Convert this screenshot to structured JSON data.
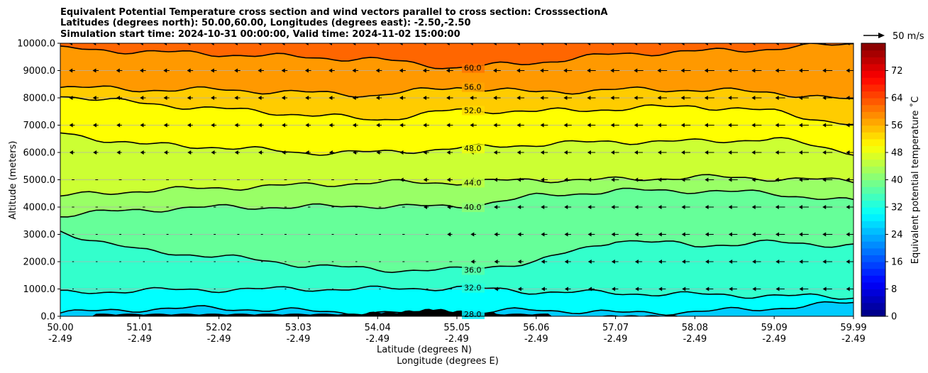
{
  "chart_data": {
    "type": "contour",
    "title_lines": [
      "Equivalent Potential Temperature cross section and wind vectors parallel to cross section: CrosssectionA",
      "Latitudes (degrees north): 50.00,60.00, Longitudes (degrees east): -2.50,-2.50",
      "Simulation start time: 2024-10-31 00:00:00, Valid time: 2024-11-02 15:00:00"
    ],
    "xlabel": "Latitude (degrees N)",
    "xlabel2": "Longitude (degrees E)",
    "ylabel": "Altitude (meters)",
    "colorbar_label": "Equivalent potential temperature ˚C",
    "x_ticks": [
      {
        "lat": "50.00",
        "lon": "-2.49"
      },
      {
        "lat": "51.01",
        "lon": "-2.49"
      },
      {
        "lat": "52.02",
        "lon": "-2.49"
      },
      {
        "lat": "53.03",
        "lon": "-2.49"
      },
      {
        "lat": "54.04",
        "lon": "-2.49"
      },
      {
        "lat": "55.05",
        "lon": "-2.49"
      },
      {
        "lat": "56.06",
        "lon": "-2.49"
      },
      {
        "lat": "57.07",
        "lon": "-2.49"
      },
      {
        "lat": "58.08",
        "lon": "-2.49"
      },
      {
        "lat": "59.09",
        "lon": "-2.49"
      },
      {
        "lat": "59.99",
        "lon": "-2.49"
      }
    ],
    "y_ticks": [
      "0.0",
      "1000.0",
      "2000.0",
      "3000.0",
      "4000.0",
      "5000.0",
      "6000.0",
      "7000.0",
      "8000.0",
      "9000.0",
      "10000.0"
    ],
    "ylim": [
      0,
      10000
    ],
    "cbar_ticks": [
      "0",
      "8",
      "16",
      "24",
      "32",
      "40",
      "48",
      "56",
      "64",
      "72"
    ],
    "cbar_range": [
      0,
      80
    ],
    "grid": "horizontal",
    "wind_reference": "50 m/s",
    "contours": [
      {
        "level": 28,
        "label": "28.0",
        "heights": [
          120,
          260,
          300,
          200,
          120,
          80,
          250,
          120,
          160,
          300,
          500
        ]
      },
      {
        "level": 32,
        "label": "32.0",
        "heights": [
          850,
          950,
          980,
          1000,
          1000,
          1050,
          900,
          850,
          800,
          750,
          700
        ]
      },
      {
        "level": 36,
        "label": "36.0",
        "heights": [
          3100,
          2400,
          2200,
          1900,
          1700,
          1700,
          2000,
          2800,
          2600,
          2700,
          2600
        ]
      },
      {
        "level": 40,
        "label": "40.0",
        "heights": [
          3700,
          3900,
          4000,
          4000,
          4050,
          4000,
          4400,
          4600,
          4600,
          4500,
          4200
        ]
      },
      {
        "level": 44,
        "label": "44.0",
        "heights": [
          4400,
          4600,
          4700,
          4800,
          4900,
          4900,
          5000,
          5000,
          5100,
          5050,
          4950
        ]
      },
      {
        "level": 48,
        "label": "48.0",
        "heights": [
          6700,
          6300,
          6200,
          6000,
          6000,
          6150,
          6300,
          6400,
          6400,
          6500,
          6000
        ]
      },
      {
        "level": 52,
        "label": "52.0",
        "heights": [
          8100,
          7800,
          7600,
          7400,
          7200,
          7550,
          7500,
          7600,
          7700,
          7500,
          7000
        ]
      },
      {
        "level": 56,
        "label": "56.0",
        "heights": [
          8400,
          8300,
          8300,
          8200,
          8100,
          8400,
          8200,
          8300,
          8300,
          8200,
          7900
        ]
      },
      {
        "level": 60,
        "label": "60.0",
        "heights": [
          9800,
          9700,
          9600,
          9500,
          9400,
          9100,
          9300,
          9600,
          9700,
          9800,
          10000
        ]
      }
    ]
  }
}
